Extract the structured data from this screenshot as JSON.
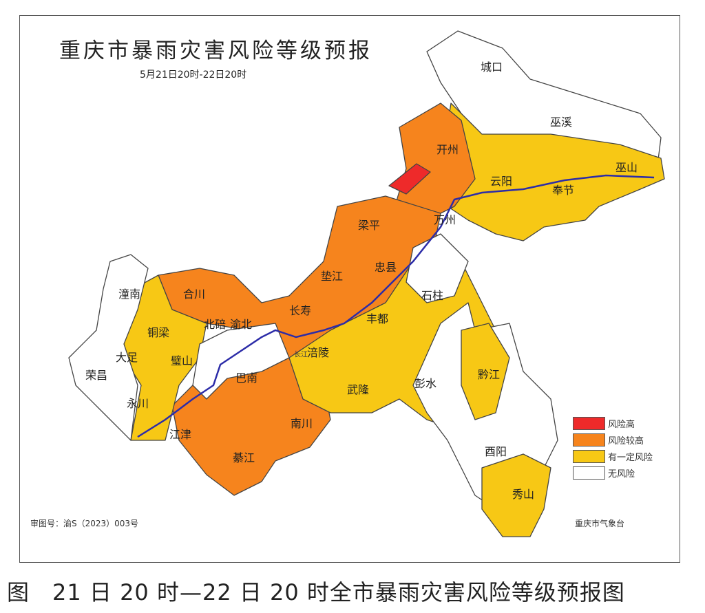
{
  "map": {
    "title": "重庆市暴雨灾害风险等级预报",
    "subtitle": "5月21日20时-22日20时",
    "colors": {
      "high": "#ee2a2a",
      "higher": "#f6841d",
      "some": "#f7c815",
      "none": "#ffffff",
      "river": "#2c2ca8",
      "border": "#444444"
    },
    "districts": [
      "城口",
      "巫溪",
      "开州",
      "云阳",
      "奉节",
      "巫山",
      "万州",
      "梁平",
      "忠县",
      "垫江",
      "石柱",
      "潼南",
      "合川",
      "长寿",
      "丰都",
      "铜梁",
      "北碚",
      "渝北",
      "大足",
      "璧山",
      "涪陵",
      "荣昌",
      "永川",
      "巴南",
      "武隆",
      "彭水",
      "黔江",
      "江津",
      "南川",
      "綦江",
      "酉阳",
      "秀山"
    ],
    "river_label": "长江"
  },
  "legend": [
    {
      "label": "风险高",
      "color": "#ee2a2a"
    },
    {
      "label": "风险较高",
      "color": "#f6841d"
    },
    {
      "label": "有一定风险",
      "color": "#f7c815"
    },
    {
      "label": "无风险",
      "color": "#ffffff"
    }
  ],
  "footer": {
    "approval": "审图号：渝S（2023）003号",
    "agency": "重庆市气象台"
  },
  "caption": "图　21 日 20 时—22 日 20 时全市暴雨灾害风险等级预报图"
}
